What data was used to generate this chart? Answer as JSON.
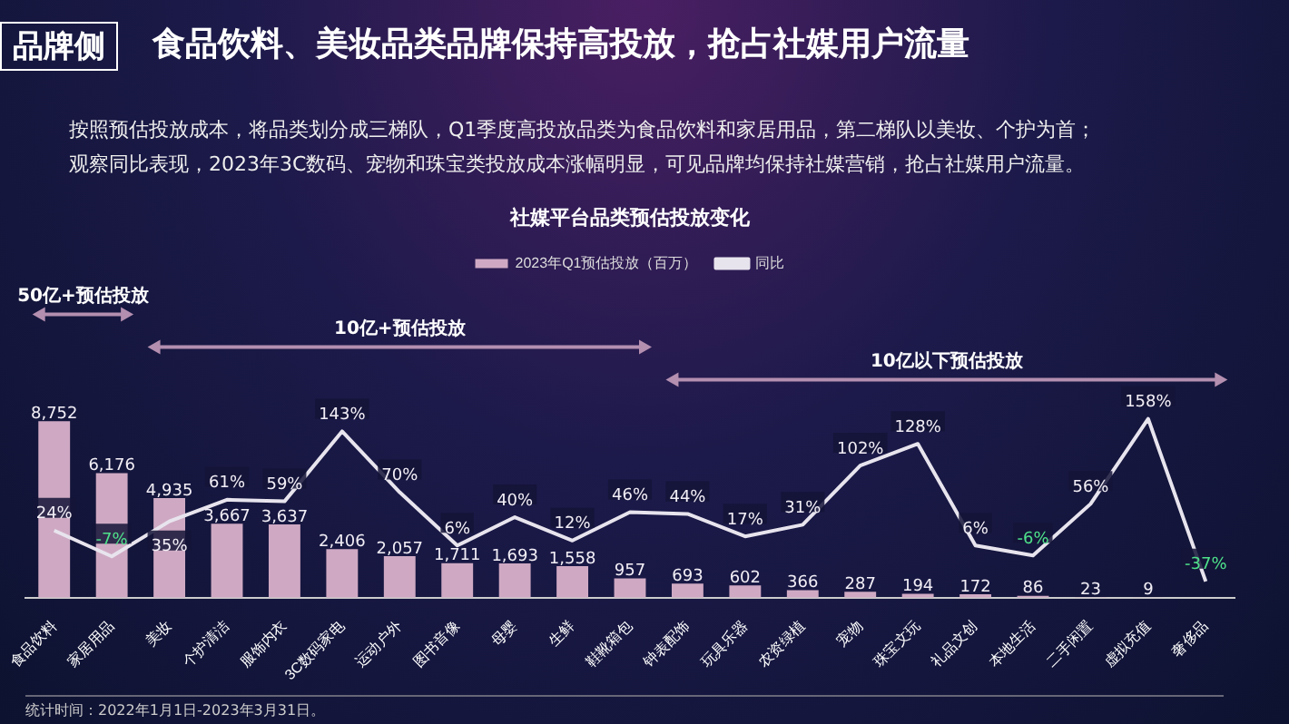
{
  "chart_data": {
    "type": "bar",
    "title": "食品饮料、美妆品类品牌保持高投放，抢占社媒用户流量",
    "subtitle": "按照预估投放成本，将品类划分成三梯队，Q1季度高投放品类为食品饮料和家居用品，第二梯队以美妆、个护为首；观察同比表现，2023年3C数码、宠物和珠宝类投放成本涨幅明显，可见品牌均保持社媒营销，抢占社媒用户流量。",
    "annotations": [
      "品牌侧",
      "社媒平台品类预估投放变化",
      "50亿+预估投放",
      "10亿+预估投放",
      "10亿以下预估投放",
      "统计时间：2022年1月1日-2023年3月31日。"
    ],
    "categories": [
      "食品饮料",
      "家居用品",
      "美妆",
      "个护清洁",
      "服饰内衣",
      "3C数码家电",
      "运动户外",
      "图书音像",
      "母婴",
      "生鲜",
      "鞋靴箱包",
      "钟表配饰",
      "玩具乐器",
      "农资绿植",
      "宠物",
      "珠宝文玩",
      "礼品文创",
      "本地生活",
      "二手闲置",
      "虚拟充值",
      "奢侈品"
    ],
    "series": [
      {
        "name": "2023年Q1预估投放（百万）",
        "color": "#cfa9c3",
        "values": [
          8752,
          6176,
          4935,
          3667,
          3637,
          2406,
          2057,
          1711,
          1693,
          1558,
          957,
          693,
          602,
          366,
          287,
          194,
          172,
          86,
          23,
          9,
          null
        ],
        "value_labels": [
          "8,752",
          "6,176",
          "4,935",
          "3,667",
          "3,637",
          "2,406",
          "2,057",
          "1,711",
          "1,693",
          "1,558",
          "957",
          "693",
          "602",
          "366",
          "287",
          "194",
          "172",
          "86",
          "23",
          "9",
          null
        ]
      },
      {
        "name": "同比",
        "type": "line",
        "axis": "y2",
        "color": "#e8e4ee",
        "values": [
          24,
          -7,
          35,
          61,
          59,
          143,
          70,
          6,
          40,
          12,
          46,
          44,
          17,
          31,
          102,
          128,
          6,
          -6,
          56,
          158,
          -37
        ],
        "value_labels": [
          "24%",
          "-7%",
          "35%",
          "61%",
          "59%",
          "143%",
          "70%",
          "6%",
          "40%",
          "12%",
          "46%",
          "44%",
          "17%",
          "31%",
          "102%",
          "128%",
          "6%",
          "-6%",
          "56%",
          "158%",
          "-37%"
        ]
      }
    ],
    "legend": "top",
    "marker": "none",
    "line_style": "solid",
    "grid": false
  }
}
